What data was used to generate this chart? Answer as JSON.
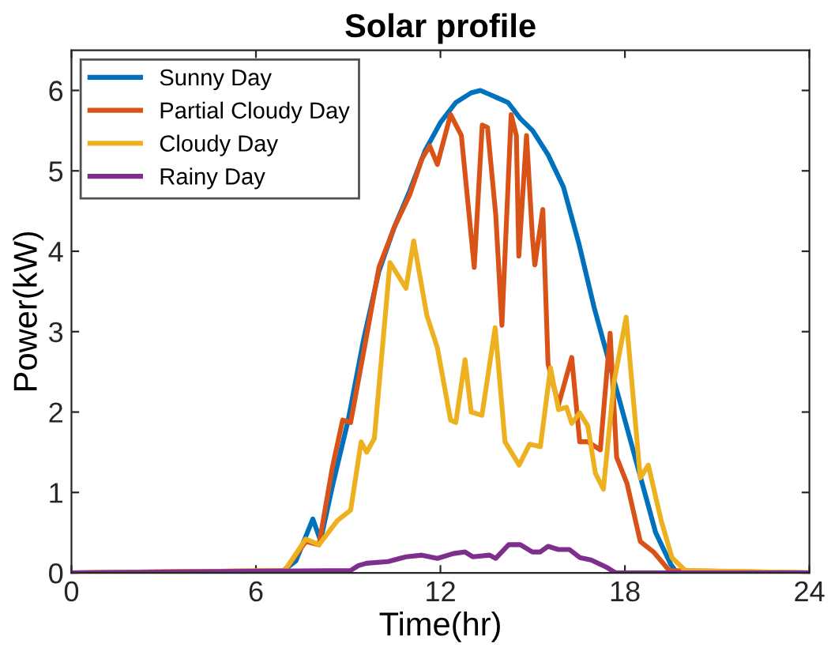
{
  "chart_data": {
    "type": "line",
    "title": "Solar profile",
    "xlabel": "Time(hr)",
    "ylabel": "Power(kW)",
    "xlim": [
      0,
      24
    ],
    "ylim": [
      0,
      6.5
    ],
    "xticks": [
      0,
      6,
      12,
      18,
      24
    ],
    "yticks": [
      0,
      1,
      2,
      3,
      4,
      5,
      6
    ],
    "grid": false,
    "legend": "top left",
    "marker": "none",
    "line_style": "solid",
    "series": [
      {
        "name": "Sunny Day",
        "color": "#0072bd",
        "x": [
          0,
          6.8,
          7.3,
          7.85,
          8.1,
          8.5,
          9,
          9.5,
          10,
          10.5,
          11,
          11.5,
          12,
          12.5,
          13,
          13.3,
          13.6,
          13.9,
          14.2,
          14.6,
          15,
          15.5,
          16,
          16.5,
          17,
          17.5,
          18,
          18.5,
          19,
          19.5,
          19.7,
          24
        ],
        "values": [
          0,
          0,
          0.15,
          0.67,
          0.4,
          1.1,
          1.9,
          2.9,
          3.75,
          4.3,
          4.75,
          5.25,
          5.6,
          5.85,
          5.97,
          6.0,
          5.95,
          5.9,
          5.85,
          5.65,
          5.5,
          5.2,
          4.8,
          4.1,
          3.3,
          2.6,
          1.9,
          1.2,
          0.5,
          0.1,
          0,
          0
        ]
      },
      {
        "name": "Partial Cloudy Day",
        "color": "#d95319",
        "x": [
          0,
          6.94,
          7.62,
          8.05,
          8.48,
          8.82,
          9.08,
          9.6,
          10,
          10.5,
          11,
          11.4,
          11.65,
          11.9,
          12.33,
          12.68,
          13.1,
          13.36,
          13.53,
          13.8,
          14.0,
          14.3,
          14.47,
          14.55,
          14.8,
          14.99,
          15.07,
          15.33,
          15.5,
          15.84,
          16.27,
          16.53,
          16.79,
          17.2,
          17.52,
          17.73,
          18.07,
          18.5,
          18.93,
          19.44,
          24
        ],
        "values": [
          0,
          0.03,
          0.39,
          0.35,
          1.3,
          1.9,
          1.87,
          2.95,
          3.8,
          4.3,
          4.7,
          5.15,
          5.31,
          5.08,
          5.7,
          5.44,
          3.8,
          5.57,
          5.54,
          4.45,
          3.08,
          5.7,
          5.44,
          3.94,
          5.44,
          4.19,
          3.83,
          4.52,
          2.6,
          2.09,
          2.68,
          1.63,
          1.63,
          1.53,
          2.98,
          1.44,
          1.11,
          0.39,
          0.26,
          0.03,
          0
        ]
      },
      {
        "name": "Cloudy Day",
        "color": "#edb120",
        "x": [
          0,
          6.94,
          7.62,
          8.05,
          8.65,
          9.08,
          9.42,
          9.6,
          9.85,
          10.36,
          10.88,
          11.13,
          11.56,
          11.9,
          12.33,
          12.5,
          12.8,
          13.0,
          13.35,
          13.78,
          14.1,
          14.56,
          14.9,
          15.25,
          15.58,
          15.84,
          16.1,
          16.27,
          16.53,
          16.79,
          17.04,
          17.3,
          17.64,
          18.04,
          18.5,
          18.76,
          19.18,
          19.53,
          19.96,
          24
        ],
        "values": [
          0,
          0.03,
          0.42,
          0.35,
          0.65,
          0.78,
          1.63,
          1.5,
          1.67,
          3.86,
          3.54,
          4.13,
          3.2,
          2.8,
          1.9,
          1.87,
          2.65,
          2.0,
          1.96,
          3.05,
          1.63,
          1.34,
          1.6,
          1.57,
          2.55,
          2.03,
          2.06,
          1.86,
          1.99,
          1.83,
          1.24,
          1.04,
          2.36,
          3.18,
          1.18,
          1.34,
          0.65,
          0.19,
          0.03,
          0
        ]
      },
      {
        "name": "Rainy Day",
        "color": "#7e2f8e",
        "x": [
          0,
          9.08,
          9.33,
          9.6,
          10.3,
          10.88,
          11.4,
          11.9,
          12.42,
          12.8,
          13.05,
          13.6,
          13.8,
          14.22,
          14.6,
          14.99,
          15.25,
          15.5,
          15.84,
          16.2,
          16.53,
          16.9,
          17.4,
          17.7,
          24
        ],
        "values": [
          0,
          0.03,
          0.09,
          0.12,
          0.14,
          0.2,
          0.22,
          0.18,
          0.24,
          0.26,
          0.2,
          0.22,
          0.18,
          0.35,
          0.35,
          0.26,
          0.26,
          0.33,
          0.29,
          0.29,
          0.19,
          0.16,
          0.07,
          0,
          0
        ]
      }
    ]
  }
}
